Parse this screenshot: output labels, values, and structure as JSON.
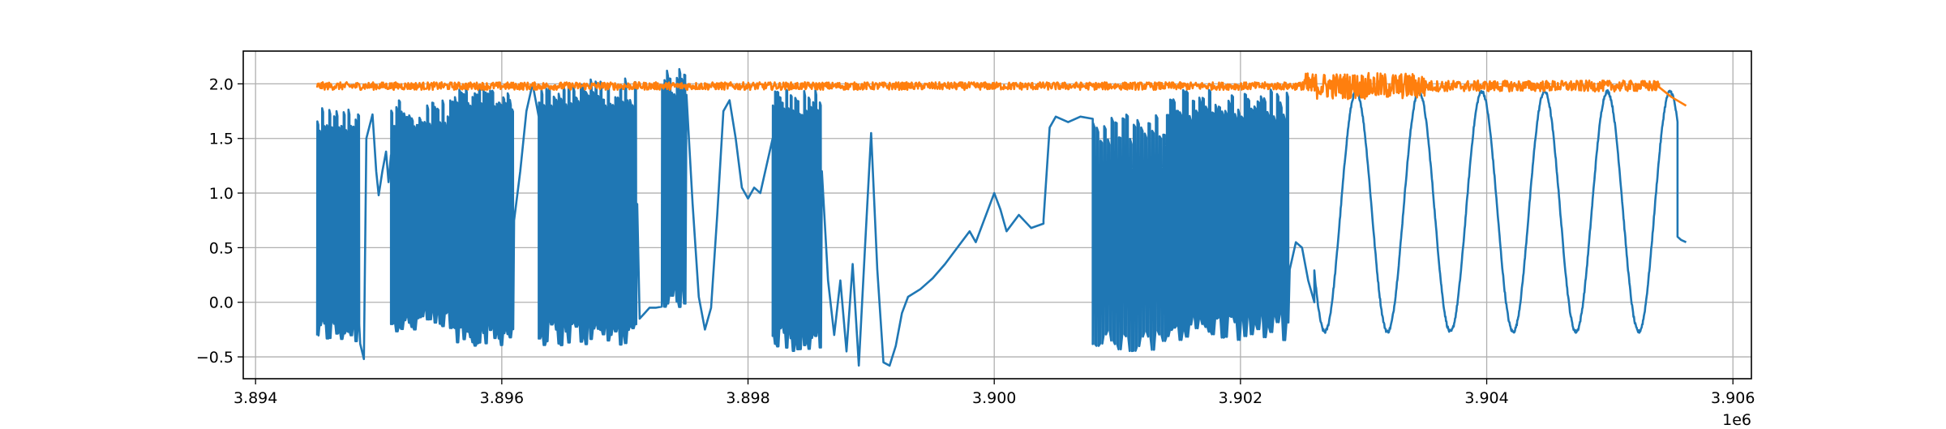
{
  "chart_data": {
    "type": "line",
    "title": "",
    "xlabel": "",
    "ylabel": "",
    "x_offset_label": "1e6",
    "xlim": [
      3.8939,
      3.90615
    ],
    "ylim": [
      -0.7,
      2.3
    ],
    "x_ticks": [
      3.894,
      3.896,
      3.898,
      3.9,
      3.902,
      3.904,
      3.906
    ],
    "x_tick_labels": [
      "3.894",
      "3.896",
      "3.898",
      "3.900",
      "3.902",
      "3.904",
      "3.906"
    ],
    "y_ticks": [
      -0.5,
      0.0,
      0.5,
      1.0,
      1.5,
      2.0
    ],
    "y_tick_labels": [
      "−0.5",
      "0.0",
      "0.5",
      "1.0",
      "1.5",
      "2.0"
    ],
    "grid": true,
    "legend": "none",
    "series": [
      {
        "color": "#1f77b4",
        "segments": [
          {
            "x0": 3.8945,
            "x1": 3.89485,
            "kind": "switch",
            "low": -0.38,
            "high": 1.82,
            "cycles": 18
          },
          {
            "x0": 3.89485,
            "x1": 3.89495,
            "kind": "points",
            "points": [
              [
                3.89485,
                -0.38
              ],
              [
                3.89488,
                -0.52
              ],
              [
                3.8949,
                1.5
              ],
              [
                3.89495,
                1.72
              ]
            ]
          },
          {
            "x0": 3.89495,
            "x1": 3.8951,
            "kind": "points",
            "points": [
              [
                3.89495,
                1.72
              ],
              [
                3.89498,
                1.2
              ],
              [
                3.895,
                0.98
              ],
              [
                3.89503,
                1.2
              ],
              [
                3.89506,
                1.38
              ],
              [
                3.89508,
                1.1
              ],
              [
                3.8951,
                1.35
              ]
            ]
          },
          {
            "x0": 3.8951,
            "x1": 3.8956,
            "kind": "switch",
            "low": -0.3,
            "high": 1.85,
            "cycles": 24
          },
          {
            "x0": 3.8956,
            "x1": 3.8961,
            "kind": "switch",
            "low": -0.4,
            "high": 2.0,
            "cycles": 28
          },
          {
            "x0": 3.8961,
            "x1": 3.8963,
            "kind": "points",
            "points": [
              [
                3.8961,
                0.75
              ],
              [
                3.89615,
                1.2
              ],
              [
                3.8962,
                1.75
              ],
              [
                3.89625,
                2.0
              ],
              [
                3.8963,
                1.7
              ]
            ]
          },
          {
            "x0": 3.8963,
            "x1": 3.8971,
            "kind": "switch",
            "low": -0.4,
            "high": 2.05,
            "cycles": 40
          },
          {
            "x0": 3.8971,
            "x1": 3.8973,
            "kind": "points",
            "points": [
              [
                3.8971,
                0.9
              ],
              [
                3.89712,
                -0.15
              ],
              [
                3.89716,
                -0.1
              ],
              [
                3.8972,
                -0.05
              ],
              [
                3.89725,
                -0.05
              ],
              [
                3.8973,
                -0.04
              ]
            ]
          },
          {
            "x0": 3.8973,
            "x1": 3.8975,
            "kind": "switch",
            "low": -0.05,
            "high": 2.15,
            "cycles": 10
          },
          {
            "x0": 3.8975,
            "x1": 3.8982,
            "kind": "points",
            "points": [
              [
                3.8975,
                1.9
              ],
              [
                3.89755,
                0.9
              ],
              [
                3.8976,
                0.05
              ],
              [
                3.89765,
                -0.25
              ],
              [
                3.8977,
                -0.05
              ],
              [
                3.89775,
                0.8
              ],
              [
                3.8978,
                1.75
              ],
              [
                3.89785,
                1.85
              ],
              [
                3.8979,
                1.5
              ],
              [
                3.89795,
                1.05
              ],
              [
                3.898,
                0.95
              ],
              [
                3.89805,
                1.05
              ],
              [
                3.8981,
                1.0
              ],
              [
                3.89815,
                1.25
              ],
              [
                3.8982,
                1.5
              ]
            ]
          },
          {
            "x0": 3.8982,
            "x1": 3.8986,
            "kind": "switch",
            "low": -0.45,
            "high": 1.95,
            "cycles": 22
          },
          {
            "x0": 3.8986,
            "x1": 3.8993,
            "kind": "points",
            "points": [
              [
                3.8986,
                1.2
              ],
              [
                3.89865,
                0.2
              ],
              [
                3.8987,
                -0.3
              ],
              [
                3.89875,
                0.2
              ],
              [
                3.8988,
                -0.45
              ],
              [
                3.89885,
                0.35
              ],
              [
                3.8989,
                -0.58
              ],
              [
                3.89895,
                0.5
              ],
              [
                3.899,
                1.55
              ],
              [
                3.89905,
                0.3
              ],
              [
                3.8991,
                -0.55
              ],
              [
                3.89915,
                -0.58
              ],
              [
                3.8992,
                -0.4
              ],
              [
                3.89925,
                -0.1
              ],
              [
                3.8993,
                0.05
              ]
            ]
          },
          {
            "x0": 3.8993,
            "x1": 3.9004,
            "kind": "points",
            "points": [
              [
                3.8993,
                0.05
              ],
              [
                3.8994,
                0.12
              ],
              [
                3.8995,
                0.22
              ],
              [
                3.8996,
                0.35
              ],
              [
                3.8997,
                0.5
              ],
              [
                3.8998,
                0.65
              ],
              [
                3.89985,
                0.55
              ],
              [
                3.8999,
                0.7
              ],
              [
                3.9,
                1.0
              ],
              [
                3.90005,
                0.85
              ],
              [
                3.9001,
                0.65
              ],
              [
                3.9002,
                0.8
              ],
              [
                3.9003,
                0.68
              ],
              [
                3.9004,
                0.72
              ]
            ]
          },
          {
            "x0": 3.9004,
            "x1": 3.9008,
            "kind": "points",
            "points": [
              [
                3.9004,
                0.75
              ],
              [
                3.90045,
                1.6
              ],
              [
                3.9005,
                1.7
              ],
              [
                3.9006,
                1.65
              ],
              [
                3.9007,
                1.7
              ],
              [
                3.9008,
                1.68
              ]
            ]
          },
          {
            "x0": 3.9008,
            "x1": 3.9014,
            "kind": "switch",
            "low": -0.5,
            "high": 1.72,
            "cycles": 20
          },
          {
            "x0": 3.9014,
            "x1": 3.9024,
            "kind": "switch",
            "low": -0.35,
            "high": 1.95,
            "cycles": 38
          },
          {
            "x0": 3.9024,
            "x1": 3.9026,
            "kind": "points",
            "points": [
              [
                3.9024,
                0.3
              ],
              [
                3.90245,
                0.55
              ],
              [
                3.9025,
                0.5
              ],
              [
                3.90255,
                0.2
              ],
              [
                3.9026,
                0.0
              ]
            ]
          },
          {
            "x0": 3.9026,
            "x1": 3.90555,
            "kind": "sine",
            "center": 0.83,
            "amplitude": 1.1,
            "period": 0.00051,
            "phase_x": 3.90294
          },
          {
            "x0": 3.90555,
            "x1": 3.90562,
            "kind": "points",
            "points": [
              [
                3.90555,
                0.6
              ],
              [
                3.90558,
                0.57
              ],
              [
                3.90562,
                0.55
              ]
            ]
          }
        ]
      },
      {
        "color": "#ff7f0e",
        "segments": [
          {
            "x0": 3.8945,
            "x1": 3.9025,
            "kind": "noise",
            "center": 1.98,
            "amplitude": 0.035
          },
          {
            "x0": 3.9025,
            "x1": 3.9035,
            "kind": "noise",
            "center": 1.98,
            "amplitude": 0.12
          },
          {
            "x0": 3.9035,
            "x1": 3.9054,
            "kind": "noise",
            "center": 1.98,
            "amplitude": 0.05
          },
          {
            "x0": 3.9054,
            "x1": 3.90562,
            "kind": "points",
            "points": [
              [
                3.9054,
                1.97
              ],
              [
                3.9055,
                1.88
              ],
              [
                3.90562,
                1.8
              ]
            ]
          }
        ]
      }
    ]
  }
}
